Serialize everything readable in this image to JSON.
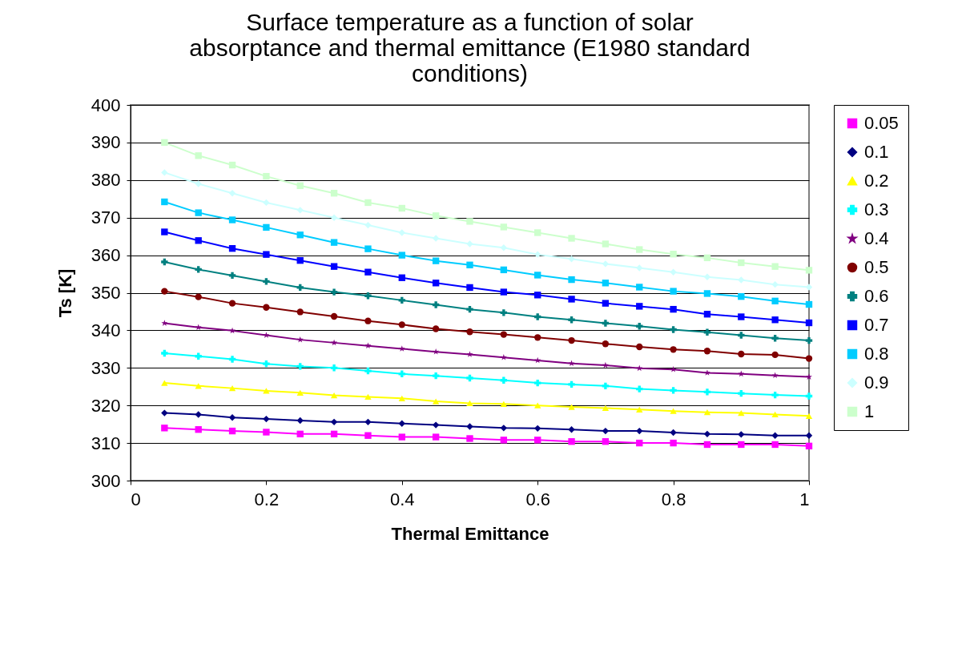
{
  "chart_data": {
    "type": "line",
    "title": "Surface temperature as a function of solar absorptance and thermal emittance (E1980 standard conditions)",
    "xlabel": "Thermal Emittance",
    "ylabel": "Ts [K]",
    "x": [
      0.05,
      0.1,
      0.15,
      0.2,
      0.25,
      0.3,
      0.35,
      0.4,
      0.45,
      0.5,
      0.55,
      0.6,
      0.65,
      0.7,
      0.75,
      0.8,
      0.85,
      0.9,
      0.95,
      1
    ],
    "xlim": [
      0,
      1
    ],
    "xticks": [
      0,
      0.2,
      0.4,
      0.6,
      0.8,
      1
    ],
    "ylim": [
      300,
      400
    ],
    "yticks": [
      300,
      310,
      320,
      330,
      340,
      350,
      360,
      370,
      380,
      390,
      400
    ],
    "grid": "y",
    "legend": "right",
    "series": [
      {
        "name": "0.05",
        "color": "#ff00ff",
        "marker": "square",
        "values": [
          314,
          313.6,
          313.2,
          312.9,
          312.4,
          312.4,
          312,
          311.6,
          311.6,
          311.2,
          310.8,
          310.8,
          310.4,
          310.4,
          310,
          310,
          309.6,
          309.6,
          309.6,
          309.2
        ]
      },
      {
        "name": "0.1",
        "color": "#000080",
        "marker": "diamond",
        "values": [
          318,
          317.6,
          316.8,
          316.4,
          316,
          315.6,
          315.6,
          315.2,
          314.8,
          314.4,
          314,
          313.9,
          313.6,
          313.2,
          313.2,
          312.8,
          312.4,
          312.3,
          312,
          312
        ]
      },
      {
        "name": "0.2",
        "color": "#ffff00",
        "marker": "triangle",
        "values": [
          326,
          325.2,
          324.6,
          323.9,
          323.4,
          322.7,
          322.3,
          321.9,
          321.1,
          320.6,
          320.4,
          320,
          319.6,
          319.3,
          318.9,
          318.5,
          318.2,
          318,
          317.6,
          317.2
        ]
      },
      {
        "name": "0.3",
        "color": "#00ffff",
        "marker": "cross",
        "values": [
          333.9,
          333.1,
          332.3,
          331.1,
          330.4,
          330,
          329.2,
          328.4,
          327.9,
          327.3,
          326.7,
          326,
          325.6,
          325.2,
          324.4,
          324,
          323.6,
          323.2,
          322.8,
          322.5
        ]
      },
      {
        "name": "0.4",
        "color": "#800080",
        "marker": "star",
        "values": [
          341.9,
          340.8,
          339.9,
          338.7,
          337.5,
          336.7,
          335.9,
          335.1,
          334.3,
          333.6,
          332.8,
          332,
          331.2,
          330.7,
          329.9,
          329.6,
          328.7,
          328.4,
          328,
          327.6
        ]
      },
      {
        "name": "0.5",
        "color": "#800000",
        "marker": "circle",
        "values": [
          350.4,
          348.9,
          347.2,
          346.1,
          344.9,
          343.7,
          342.5,
          341.5,
          340.4,
          339.6,
          338.9,
          338.1,
          337.3,
          336.4,
          335.6,
          334.9,
          334.5,
          333.7,
          333.5,
          332.5
        ]
      },
      {
        "name": "0.6",
        "color": "#008080",
        "marker": "cross",
        "values": [
          358.2,
          356.2,
          354.6,
          353,
          351.4,
          350.2,
          349.2,
          348,
          346.8,
          345.6,
          344.7,
          343.6,
          342.8,
          341.9,
          341.1,
          340.2,
          339.5,
          338.7,
          337.9,
          337.3
        ]
      },
      {
        "name": "0.7",
        "color": "#0000ff",
        "marker": "square",
        "values": [
          366.2,
          363.9,
          361.8,
          360.2,
          358.6,
          357,
          355.5,
          354,
          352.6,
          351.4,
          350.2,
          349.4,
          348.3,
          347.2,
          346.4,
          345.6,
          344.3,
          343.6,
          342.8,
          342
        ]
      },
      {
        "name": "0.8",
        "color": "#00ccff",
        "marker": "square",
        "values": [
          374.2,
          371.3,
          369.4,
          367.4,
          365.4,
          363.4,
          361.7,
          360,
          358.5,
          357.4,
          356.1,
          354.7,
          353.5,
          352.6,
          351.5,
          350.4,
          349.8,
          349,
          347.8,
          346.9
        ]
      },
      {
        "name": "0.9",
        "color": "#ccffff",
        "marker": "diamond",
        "values": [
          382,
          379,
          376.5,
          374,
          372,
          370,
          368,
          366,
          364.5,
          363,
          362,
          360.2,
          359,
          357.7,
          356.6,
          355.5,
          354.2,
          353.4,
          352.2,
          351.5
        ]
      },
      {
        "name": "1",
        "color": "#ccffcc",
        "marker": "square",
        "values": [
          390,
          386.5,
          384,
          381,
          378.5,
          376.5,
          374,
          372.5,
          370.5,
          369,
          367.5,
          366,
          364.5,
          363,
          361.5,
          360.3,
          359.3,
          358,
          357,
          356
        ]
      }
    ]
  }
}
